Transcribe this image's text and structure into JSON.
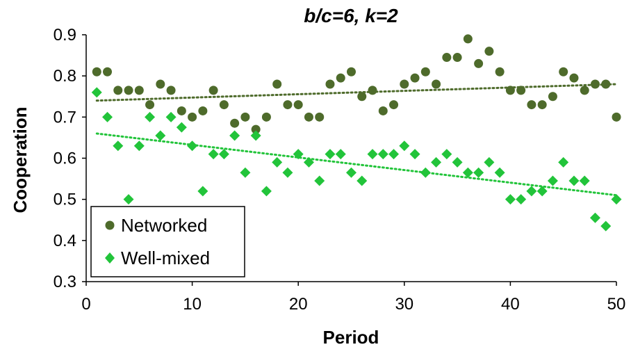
{
  "chart_data": {
    "type": "scatter",
    "title": "b/c=6, k=2",
    "xlabel": "Period",
    "ylabel": "Cooperation",
    "xlim": [
      0,
      50
    ],
    "ylim": [
      0.3,
      0.9
    ],
    "xticks": [
      "0",
      "10",
      "20",
      "30",
      "40",
      "50"
    ],
    "yticks": [
      "0.3",
      "0.4",
      "0.5",
      "0.6",
      "0.7",
      "0.8",
      "0.9"
    ],
    "grid": false,
    "legend_position": "bottom-left",
    "series": [
      {
        "name": "Networked",
        "marker": "circle",
        "color": "#4e6b2b",
        "trendline": true,
        "trend_start": 0.74,
        "trend_end": 0.78,
        "x": [
          1,
          2,
          3,
          4,
          5,
          6,
          7,
          8,
          9,
          10,
          11,
          12,
          13,
          14,
          15,
          16,
          17,
          18,
          19,
          20,
          21,
          22,
          23,
          24,
          25,
          26,
          27,
          28,
          29,
          30,
          31,
          32,
          33,
          34,
          35,
          36,
          37,
          38,
          39,
          40,
          41,
          42,
          43,
          44,
          45,
          46,
          47,
          48,
          49,
          50
        ],
        "y": [
          0.81,
          0.81,
          0.765,
          0.765,
          0.765,
          0.73,
          0.78,
          0.765,
          0.715,
          0.7,
          0.715,
          0.765,
          0.73,
          0.685,
          0.7,
          0.67,
          0.7,
          0.78,
          0.73,
          0.73,
          0.7,
          0.7,
          0.78,
          0.795,
          0.81,
          0.75,
          0.765,
          0.715,
          0.73,
          0.78,
          0.795,
          0.81,
          0.78,
          0.845,
          0.845,
          0.89,
          0.83,
          0.86,
          0.81,
          0.765,
          0.765,
          0.73,
          0.73,
          0.75,
          0.81,
          0.795,
          0.765,
          0.78,
          0.78,
          0.7
        ]
      },
      {
        "name": "Well-mixed",
        "marker": "diamond",
        "color": "#22c43a",
        "trendline": true,
        "trend_start": 0.66,
        "trend_end": 0.51,
        "x": [
          1,
          2,
          3,
          4,
          5,
          6,
          7,
          8,
          9,
          10,
          11,
          12,
          13,
          14,
          15,
          16,
          17,
          18,
          19,
          20,
          21,
          22,
          23,
          24,
          25,
          26,
          27,
          28,
          29,
          30,
          31,
          32,
          33,
          34,
          35,
          36,
          37,
          38,
          39,
          40,
          41,
          42,
          43,
          44,
          45,
          46,
          47,
          48,
          49,
          50
        ],
        "y": [
          0.76,
          0.7,
          0.63,
          0.5,
          0.63,
          0.7,
          0.655,
          0.7,
          0.675,
          0.63,
          0.52,
          0.61,
          0.61,
          0.655,
          0.565,
          0.655,
          0.52,
          0.59,
          0.565,
          0.61,
          0.59,
          0.545,
          0.61,
          0.61,
          0.565,
          0.545,
          0.61,
          0.61,
          0.61,
          0.63,
          0.61,
          0.565,
          0.59,
          0.61,
          0.59,
          0.565,
          0.565,
          0.59,
          0.565,
          0.5,
          0.5,
          0.52,
          0.52,
          0.545,
          0.59,
          0.545,
          0.545,
          0.455,
          0.435,
          0.5
        ]
      }
    ]
  }
}
